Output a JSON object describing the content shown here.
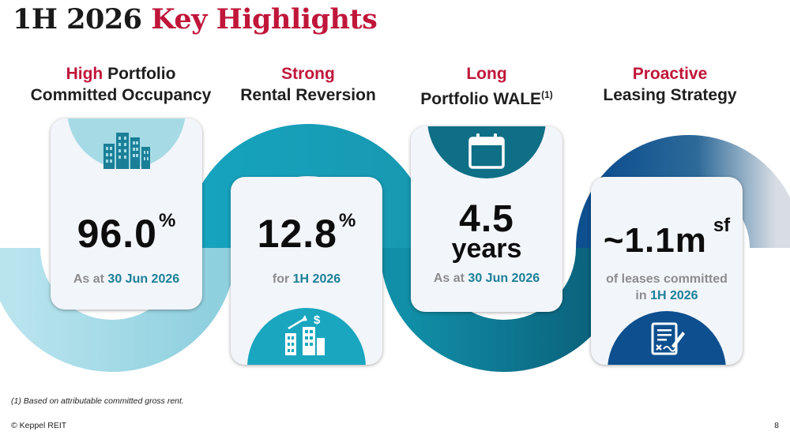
{
  "title": {
    "dark": "1H 2026",
    "red": "Key Highlights"
  },
  "highlights": [
    {
      "head_red": "High",
      "head_rest": " Portfolio",
      "head_line2": "Committed Occupancy",
      "value": "96.0",
      "value_unit": "%",
      "sub_prefix": "As at ",
      "sub_highlight": "30 Jun 2026",
      "icon": "office-buildings-icon"
    },
    {
      "head_red": "Strong",
      "head_line2": "Rental Reversion",
      "value": "12.8",
      "value_unit": "%",
      "sub_prefix": "for ",
      "sub_highlight": "1H 2026",
      "icon": "buildings-growth-icon"
    },
    {
      "head_red": "Long",
      "head_line2": "Portfolio WALE",
      "head_sup": "(1)",
      "value": "4.5",
      "value_line2": "years",
      "sub_prefix": "As at ",
      "sub_highlight": "30 Jun 2026",
      "icon": "calendar-icon"
    },
    {
      "head_red": "Proactive",
      "head_line2": "Leasing Strategy",
      "value": "~1.1m",
      "value_unit": "sf",
      "sub_line1": "of leases committed",
      "sub_prefix": "in ",
      "sub_highlight": "1H 2026",
      "icon": "signed-contract-icon"
    }
  ],
  "footnote": "(1)  Based on attributable committed gross rent.",
  "copyright": "© Keppel REIT",
  "page_number": "8",
  "colors": {
    "red": "#c0163a",
    "teal": "#1b7f97",
    "light_teal": "#9fd8e4",
    "mid_teal": "#1aa6bf",
    "dark_teal": "#0e6f86",
    "navy": "#0d4f8f",
    "card": "#f2f5fa"
  }
}
